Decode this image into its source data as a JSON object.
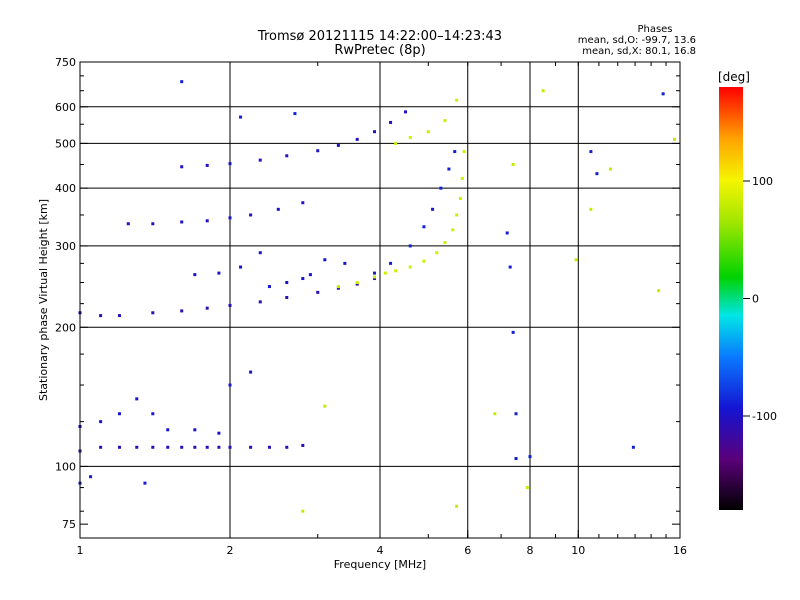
{
  "header": {
    "title_line1": "Tromsø 20121115 14:22:00–14:23:43",
    "title_line2": "RwPretec (8p)"
  },
  "phase_info": {
    "label": "Phases",
    "o_mode": "mean, sd,O: -99.7, 13.6",
    "x_mode": "mean, sd,X: 80.1, 16.8"
  },
  "colorbar": {
    "unit": "[deg]",
    "ticks": [
      {
        "value": 100,
        "label": "100"
      },
      {
        "value": 0,
        "label": "0"
      },
      {
        "value": -100,
        "label": "-100"
      }
    ],
    "range": [
      -180,
      180
    ],
    "scheme": "rainbow (black-purple-blue-cyan-green-yellow-orange-red)"
  },
  "chart_data": {
    "type": "scatter",
    "title": "Tromsø 20121115 14:22:00–14:23:43",
    "subtitle": "RwPretec (8p)",
    "xlabel": "Frequency [MHz]",
    "ylabel": "Stationary phase Virtual Height [km]",
    "xscale": "log",
    "yscale": "log",
    "xlim": [
      1,
      16
    ],
    "ylim": [
      70,
      750
    ],
    "x_ticks": [
      {
        "value": 1,
        "label": "1"
      },
      {
        "value": 2,
        "label": "2"
      },
      {
        "value": 4,
        "label": "4"
      },
      {
        "value": 6,
        "label": "6"
      },
      {
        "value": 8,
        "label": "8"
      },
      {
        "value": 10,
        "label": "10"
      },
      {
        "value": 16,
        "label": "16"
      }
    ],
    "y_ticks": [
      {
        "value": 75,
        "label": "75"
      },
      {
        "value": 100,
        "label": "100"
      },
      {
        "value": 200,
        "label": "200"
      },
      {
        "value": 300,
        "label": "300"
      },
      {
        "value": 400,
        "label": "400"
      },
      {
        "value": 500,
        "label": "500"
      },
      {
        "value": 600,
        "label": "600"
      },
      {
        "value": 750,
        "label": "750"
      }
    ],
    "grid_x": [
      2,
      4,
      6,
      8,
      10
    ],
    "grid_y": [
      100,
      200,
      300,
      400,
      500,
      600
    ],
    "grid": true,
    "color_dimension": "phase [deg]",
    "series": [
      {
        "values": [
          [
            1.0,
            108
          ],
          [
            1.1,
            110
          ],
          [
            1.2,
            110
          ],
          [
            1.3,
            110
          ],
          [
            1.4,
            110
          ],
          [
            1.5,
            110
          ],
          [
            1.6,
            110
          ],
          [
            1.7,
            110
          ],
          [
            1.8,
            110
          ],
          [
            1.9,
            110
          ],
          [
            2.0,
            110
          ],
          [
            2.2,
            110
          ],
          [
            2.4,
            110
          ],
          [
            2.6,
            110
          ],
          [
            2.8,
            111
          ]
        ],
        "phase": -105
      },
      {
        "values": [
          [
            1.0,
            215
          ],
          [
            1.1,
            212
          ],
          [
            1.2,
            212
          ],
          [
            1.4,
            215
          ],
          [
            1.6,
            217
          ],
          [
            1.8,
            220
          ],
          [
            2.0,
            223
          ],
          [
            2.3,
            227
          ],
          [
            2.6,
            232
          ],
          [
            3.0,
            238
          ],
          [
            3.3,
            243
          ],
          [
            3.6,
            248
          ],
          [
            3.9,
            255
          ]
        ],
        "phase": -110
      },
      {
        "values": [
          [
            3.3,
            245
          ],
          [
            3.6,
            250
          ],
          [
            3.9,
            257
          ],
          [
            4.1,
            262
          ],
          [
            4.3,
            265
          ],
          [
            4.6,
            270
          ],
          [
            4.9,
            278
          ],
          [
            5.2,
            290
          ],
          [
            5.4,
            305
          ],
          [
            5.6,
            325
          ],
          [
            5.7,
            350
          ],
          [
            5.8,
            380
          ],
          [
            5.85,
            420
          ],
          [
            5.9,
            480
          ]
        ],
        "phase": 85
      },
      {
        "values": [
          [
            3.9,
            262
          ],
          [
            4.2,
            275
          ],
          [
            4.6,
            300
          ],
          [
            4.9,
            330
          ],
          [
            5.1,
            360
          ],
          [
            5.3,
            400
          ],
          [
            5.5,
            440
          ],
          [
            5.65,
            480
          ]
        ],
        "phase": -90
      },
      {
        "values": [
          [
            1.25,
            335
          ],
          [
            1.4,
            335
          ],
          [
            1.6,
            338
          ],
          [
            1.8,
            340
          ],
          [
            2.0,
            345
          ],
          [
            2.2,
            350
          ],
          [
            2.5,
            360
          ],
          [
            2.8,
            372
          ]
        ],
        "phase": -100
      },
      {
        "values": [
          [
            1.6,
            445
          ],
          [
            1.8,
            448
          ],
          [
            2.0,
            452
          ],
          [
            2.3,
            460
          ],
          [
            2.6,
            470
          ],
          [
            3.0,
            482
          ],
          [
            3.3,
            495
          ],
          [
            3.6,
            510
          ],
          [
            3.9,
            530
          ],
          [
            4.2,
            555
          ],
          [
            4.5,
            585
          ]
        ],
        "phase": -100
      },
      {
        "values": [
          [
            4.3,
            500
          ],
          [
            4.6,
            515
          ],
          [
            5.0,
            530
          ],
          [
            5.4,
            560
          ],
          [
            5.7,
            620
          ]
        ],
        "phase": 85
      },
      {
        "values": [
          [
            1.0,
            122
          ],
          [
            1.1,
            125
          ],
          [
            1.2,
            130
          ],
          [
            1.3,
            140
          ],
          [
            1.4,
            130
          ],
          [
            1.5,
            120
          ],
          [
            1.7,
            120
          ],
          [
            1.9,
            118
          ],
          [
            2.0,
            150
          ],
          [
            2.2,
            160
          ],
          [
            2.4,
            245
          ],
          [
            2.6,
            250
          ],
          [
            2.8,
            255
          ],
          [
            1.7,
            260
          ],
          [
            1.9,
            262
          ],
          [
            2.1,
            270
          ],
          [
            2.3,
            290
          ],
          [
            2.9,
            260
          ],
          [
            3.1,
            280
          ],
          [
            3.4,
            275
          ]
        ],
        "phase": -95
      },
      {
        "values": [
          [
            1.0,
            92
          ],
          [
            1.05,
            95
          ],
          [
            1.35,
            92
          ],
          [
            1.6,
            680
          ],
          [
            2.1,
            570
          ],
          [
            2.7,
            580
          ],
          [
            7.2,
            320
          ],
          [
            7.3,
            270
          ],
          [
            7.4,
            195
          ],
          [
            7.5,
            130
          ],
          [
            7.5,
            104
          ],
          [
            8.0,
            105
          ],
          [
            10.6,
            480
          ],
          [
            10.9,
            430
          ],
          [
            12.9,
            110
          ],
          [
            14.8,
            640
          ]
        ],
        "phase": -90
      },
      {
        "values": [
          [
            2.8,
            80
          ],
          [
            3.1,
            135
          ],
          [
            5.7,
            82
          ],
          [
            7.4,
            450
          ],
          [
            7.9,
            90
          ],
          [
            8.5,
            650
          ],
          [
            9.9,
            280
          ],
          [
            10.6,
            360
          ],
          [
            11.6,
            440
          ],
          [
            14.5,
            240
          ],
          [
            15.6,
            510
          ],
          [
            6.8,
            130
          ]
        ],
        "phase": 80
      }
    ]
  }
}
